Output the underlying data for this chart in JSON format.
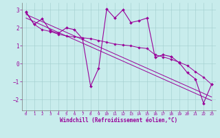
{
  "xlabel": "Windchill (Refroidissement éolien,°C)",
  "background_color": "#c8ecec",
  "line_color": "#990099",
  "x_hours": [
    0,
    1,
    2,
    3,
    4,
    5,
    6,
    7,
    8,
    9,
    10,
    11,
    12,
    13,
    14,
    15,
    16,
    17,
    18,
    19,
    20,
    21,
    22,
    23
  ],
  "temp_line": [
    2.9,
    2.2,
    2.5,
    1.85,
    1.7,
    2.0,
    1.9,
    1.4,
    -1.25,
    -0.25,
    3.05,
    2.55,
    3.0,
    2.3,
    2.4,
    2.55,
    0.35,
    0.5,
    0.4,
    0.05,
    -0.5,
    -0.85,
    -2.2,
    -1.15
  ],
  "smooth_line": [
    2.85,
    2.2,
    1.9,
    1.8,
    1.65,
    1.55,
    1.5,
    1.45,
    1.4,
    1.3,
    1.2,
    1.1,
    1.05,
    1.0,
    0.9,
    0.85,
    0.5,
    0.38,
    0.25,
    0.08,
    -0.1,
    -0.45,
    -0.75,
    -1.15
  ],
  "trend1": [
    2.75,
    2.55,
    2.35,
    2.15,
    1.95,
    1.75,
    1.55,
    1.35,
    1.15,
    0.95,
    0.75,
    0.55,
    0.35,
    0.15,
    -0.05,
    -0.25,
    -0.45,
    -0.65,
    -0.85,
    -1.05,
    -1.25,
    -1.45,
    -1.65,
    -1.85
  ],
  "trend2": [
    2.55,
    2.35,
    2.15,
    1.95,
    1.75,
    1.55,
    1.35,
    1.15,
    0.95,
    0.75,
    0.55,
    0.35,
    0.15,
    -0.05,
    -0.25,
    -0.45,
    -0.65,
    -0.85,
    -1.05,
    -1.25,
    -1.45,
    -1.65,
    -1.85,
    -2.05
  ],
  "ylim": [
    -2.6,
    3.4
  ],
  "yticks": [
    -2,
    -1,
    0,
    1,
    2,
    3
  ],
  "xticks": [
    0,
    1,
    2,
    3,
    4,
    5,
    6,
    7,
    8,
    9,
    10,
    11,
    12,
    13,
    14,
    15,
    16,
    17,
    18,
    19,
    20,
    21,
    22,
    23
  ]
}
